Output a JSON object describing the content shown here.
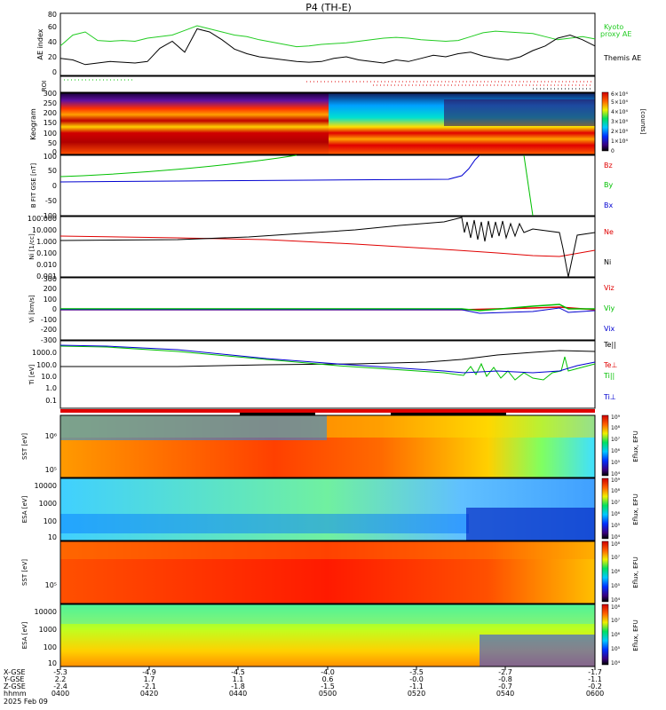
{
  "title": "P4 (TH-E)",
  "date_label": "2025 Feb 09",
  "colors": {
    "black": "#000000",
    "red": "#e00000",
    "green": "#00c000",
    "blue": "#0000d0",
    "kyoto": "#22cc22"
  },
  "chart_data": [
    {
      "type": "line",
      "id": "ae",
      "ylabel": "AE index",
      "ylim": [
        0,
        80
      ],
      "yticks": [
        "0",
        "20",
        "40",
        "60",
        "80"
      ],
      "series": [
        {
          "name": "Kyoto",
          "name2": "proxy AE",
          "color": "#22cc22",
          "values": [
            38,
            52,
            56,
            45,
            44,
            45,
            44,
            48,
            50,
            52,
            58,
            64,
            60,
            56,
            52,
            50,
            46,
            43,
            40,
            37,
            38,
            40,
            41,
            42,
            44,
            46,
            48,
            49,
            48,
            46,
            45,
            44,
            45,
            50,
            55,
            57,
            56,
            55,
            54,
            50,
            46,
            48,
            50,
            47
          ]
        },
        {
          "name": "Themis AE",
          "color": "#000000",
          "values": [
            22,
            20,
            14,
            16,
            18,
            17,
            16,
            18,
            35,
            44,
            30,
            60,
            56,
            46,
            34,
            28,
            24,
            22,
            20,
            18,
            17,
            18,
            22,
            24,
            20,
            18,
            16,
            20,
            18,
            22,
            26,
            24,
            28,
            30,
            25,
            22,
            20,
            24,
            32,
            38,
            48,
            52,
            46,
            38
          ]
        }
      ]
    },
    {
      "type": "scatter",
      "id": "roi",
      "ylabel": "ROI"
    },
    {
      "type": "heatmap",
      "id": "keogram",
      "ylabel": "Keogram",
      "ylim": [
        0,
        300
      ],
      "yticks": [
        "0",
        "50",
        "100",
        "150",
        "200",
        "250",
        "300"
      ],
      "colorbar": {
        "label": "[counts]",
        "ticks": [
          "0",
          "1×10⁴",
          "2×10⁴",
          "3×10⁴",
          "4×10⁴",
          "5×10⁴",
          "6×10⁴"
        ]
      }
    },
    {
      "type": "line",
      "id": "bfield",
      "ylabel": "B FIT GSE [nT]",
      "ylim": [
        -100,
        100
      ],
      "yticks": [
        "-100",
        "-50",
        "0",
        "50",
        "100"
      ],
      "series": [
        {
          "name": "Bz",
          "color": "#e00000"
        },
        {
          "name": "By",
          "color": "#00c000"
        },
        {
          "name": "Bx",
          "color": "#0000d0"
        }
      ]
    },
    {
      "type": "line",
      "id": "density",
      "ylabel": "Ni [1/cc]",
      "yticks": [
        "0.001",
        "0.010",
        "0.100",
        "1.000",
        "10.000",
        "100.000"
      ],
      "series": [
        {
          "name": "Ne",
          "color": "#e00000"
        },
        {
          "name": "Ni",
          "color": "#000000"
        }
      ]
    },
    {
      "type": "line",
      "id": "velocity",
      "ylabel": "Vi [km/s]",
      "ylim": [
        -300,
        300
      ],
      "yticks": [
        "-300",
        "-200",
        "-100",
        "0",
        "100",
        "200",
        "300"
      ],
      "series": [
        {
          "name": "Viz",
          "color": "#e00000"
        },
        {
          "name": "Viy",
          "color": "#00c000"
        },
        {
          "name": "Vix",
          "color": "#0000d0"
        }
      ]
    },
    {
      "type": "line",
      "id": "temperature",
      "ylabel": "Ti [eV]",
      "yticks": [
        "0.1",
        "1.0",
        "10.0",
        "100.0",
        "1000.0"
      ],
      "series": [
        {
          "name": "Te||",
          "color": "#000000"
        },
        {
          "name": "Te⊥",
          "color": "#e00000"
        },
        {
          "name": "Ti||",
          "color": "#00c000"
        },
        {
          "name": "Ti⊥",
          "color": "#0000d0"
        }
      ]
    },
    {
      "type": "heatmap",
      "id": "sst_e",
      "ylabel": "SST [eV]",
      "yticks": [
        "10⁵",
        "10⁶"
      ],
      "colorbar": {
        "label": "Eflux, EFU",
        "ticks": [
          "10⁴",
          "10⁵",
          "10⁶",
          "10⁷",
          "10⁸",
          "10⁹"
        ]
      }
    },
    {
      "type": "heatmap",
      "id": "esa_e",
      "ylabel": "ESA [eV]",
      "yticks": [
        "10",
        "100",
        "1000",
        "10000"
      ],
      "colorbar": {
        "label": "Eflux, EFU",
        "ticks": [
          "10⁴",
          "10⁵",
          "10⁶",
          "10⁷",
          "10⁸",
          "10⁹"
        ]
      }
    },
    {
      "type": "heatmap",
      "id": "sst_i",
      "ylabel": "SST [eV]",
      "yticks": [
        "10⁵"
      ],
      "colorbar": {
        "label": "Eflux, EFU",
        "ticks": [
          "10⁴",
          "10⁵",
          "10⁶",
          "10⁷",
          "10⁸"
        ]
      }
    },
    {
      "type": "heatmap",
      "id": "esa_i",
      "ylabel": "ESA [eV]",
      "yticks": [
        "10",
        "100",
        "1000",
        "10000"
      ],
      "colorbar": {
        "label": "Eflux, EFU",
        "ticks": [
          "10⁴",
          "10⁵",
          "10⁶",
          "10⁷",
          "10⁸"
        ]
      }
    }
  ],
  "x_axis": {
    "row_labels": [
      "X-GSE",
      "Y-GSE",
      "Z-GSE",
      "hhmm"
    ],
    "ticks": [
      {
        "x": "-5.3",
        "y": "2.2",
        "z": "-2.4",
        "t": "0400"
      },
      {
        "x": "-4.9",
        "y": "1.7",
        "z": "-2.1",
        "t": "0420"
      },
      {
        "x": "-4.5",
        "y": "1.1",
        "z": "-1.8",
        "t": "0440"
      },
      {
        "x": "-4.0",
        "y": "0.6",
        "z": "-1.5",
        "t": "0500"
      },
      {
        "x": "-3.5",
        "y": "-0.0",
        "z": "-1.1",
        "t": "0520"
      },
      {
        "x": "-2.7",
        "y": "-0.8",
        "z": "-0.7",
        "t": "0540"
      },
      {
        "x": "-1.7",
        "y": "-1.1",
        "z": "-0.2",
        "t": "0600"
      }
    ]
  }
}
